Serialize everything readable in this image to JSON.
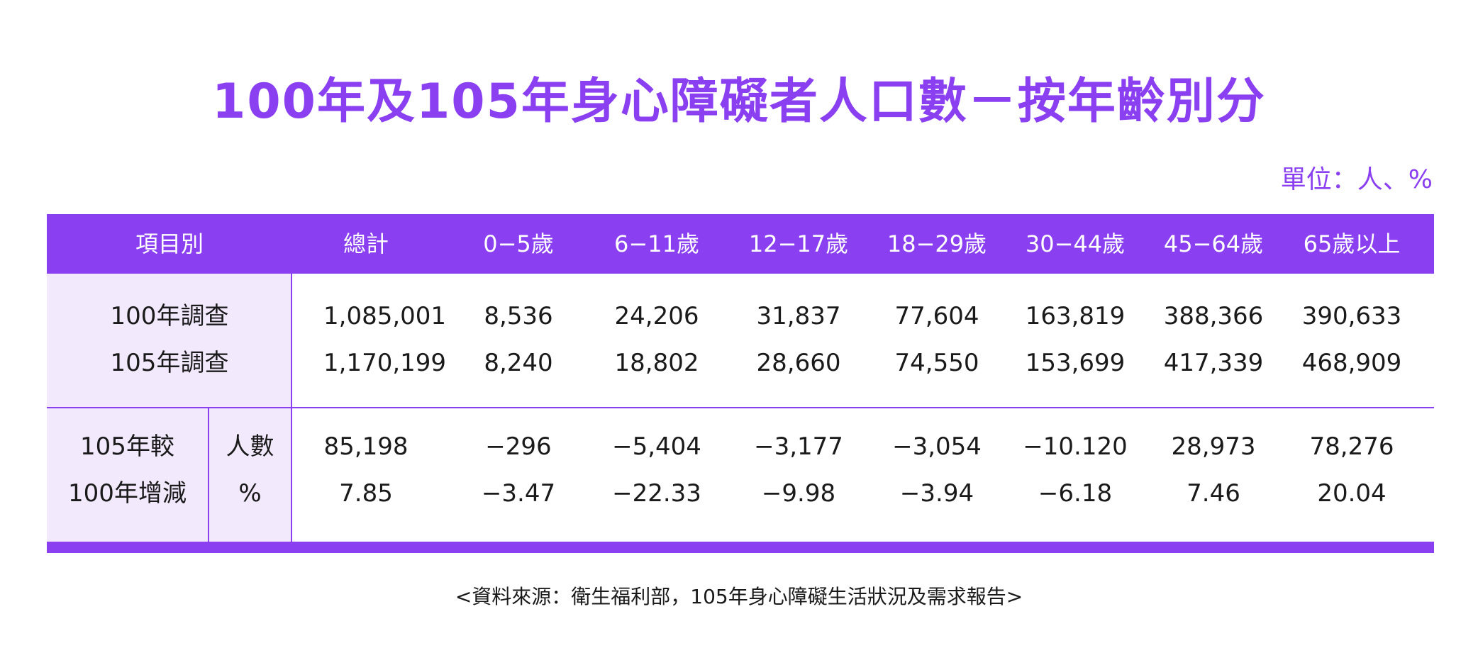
{
  "title": "100年及105年身心障礙者人口數－按年齡別分",
  "unit": "單位：人、%",
  "header": {
    "item": "項目別",
    "columns": [
      "總計",
      "0−5歲",
      "6−11歲",
      "12−17歲",
      "18−29歲",
      "30−44歲",
      "45−64歲",
      "65歲以上"
    ]
  },
  "rows": {
    "r100": {
      "label": "100年調查",
      "values": [
        "1,085,001",
        "8,536",
        "24,206",
        "31,837",
        "77,604",
        "163,819",
        "388,366",
        "390,633"
      ]
    },
    "r105": {
      "label": "105年調查",
      "values": [
        "1,170,199",
        "8,240",
        "18,802",
        "28,660",
        "74,550",
        "153,699",
        "417,339",
        "468,909"
      ]
    },
    "change_label_1": "105年較",
    "change_label_2": "100年增減",
    "count": {
      "label": "人數",
      "values": [
        "85,198",
        "−296",
        "−5,404",
        "−3,177",
        "−3,054",
        "−10.120",
        "28,973",
        "78,276"
      ]
    },
    "pct": {
      "label": "%",
      "values": [
        "7.85",
        "−3.47",
        "−22.33",
        "−9.98",
        "−3.94",
        "−6.18",
        "7.46",
        "20.04"
      ]
    }
  },
  "source": "<資料來源：衛生福利部，105年身心障礙生活狀況及需求報告>",
  "colors": {
    "accent": "#8a3ff0",
    "rowhead_bg": "#f3e9fd"
  }
}
